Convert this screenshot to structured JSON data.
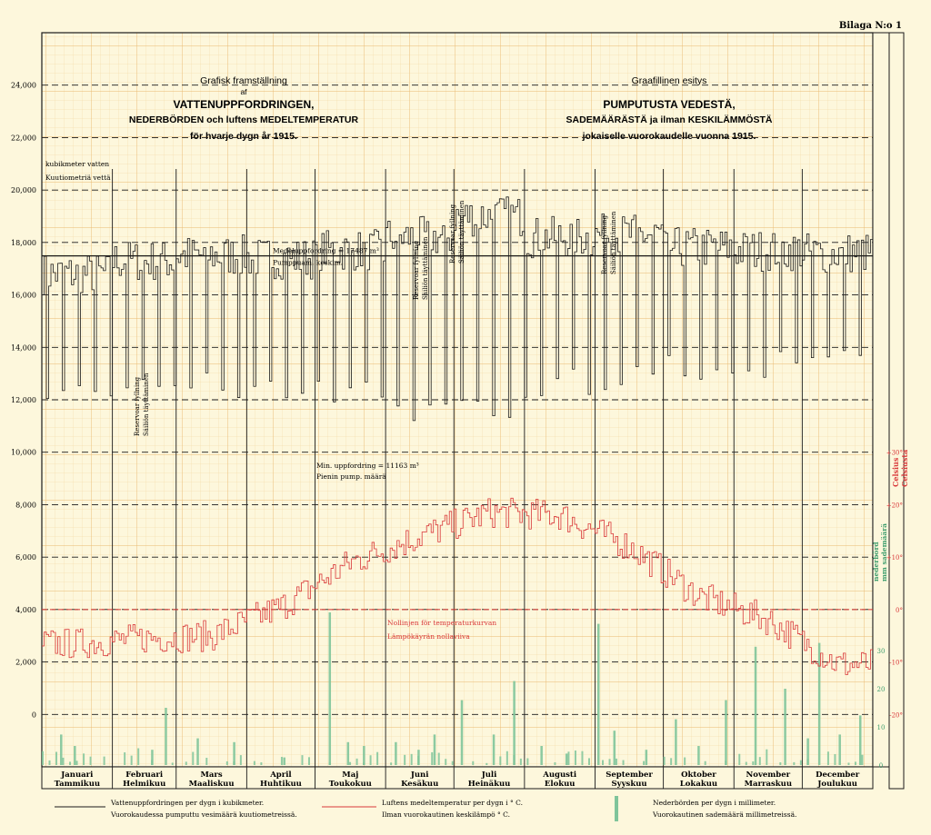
{
  "sheet_label": "Bilaga N:o 1",
  "title_sv": {
    "line1": "Grafisk framställning",
    "line2": "af",
    "line3": "VATTENUPPFORDRINGEN,",
    "line4": "NEDERBÖRDEN och luftens MEDELTEMPERATUR",
    "line5": "för hvarje dygn år 1915."
  },
  "title_fi": {
    "line1": "Graafillinen esitys",
    "line3": "PUMPUTUSTA VEDESTÄ,",
    "line4": "SADEMÄÄRÄSTÄ ja ilman KESKILÄMMÖSTÄ",
    "line5": "jokaiselle vuorokaudelle vuonna 1915."
  },
  "axis": {
    "left_unit_sv": "kubikmeter vatten",
    "left_unit_fi": "Kuutiometriä vettä",
    "temp_unit_sv": "Celsius",
    "temp_unit_fi": "Celsiusta",
    "precip_unit_sv": "nederbörd",
    "precip_unit_fi": "mm sademäärä"
  },
  "annotations": {
    "mean_sv": "Medeluppfordring = 17487 m³",
    "mean_fi": "Pumppuam. keskim.",
    "min_sv": "Min. uppfordring = 11163 m³",
    "min_fi": "Pienin pump. määrä",
    "zero_sv": "Nollinjen för temperaturkurvan",
    "zero_fi": "Lämpökäyrän nollaviiva",
    "reservoir_sv": "Reservoar fyllning",
    "reservoir_fi": "Säiliön täyttäminen"
  },
  "legend": {
    "water_sv": "Vattenuppfordringen per dygn i kubikmeter.",
    "water_fi": "Vuorokaudessa pumputtu vesimäärä kuutiometreissä.",
    "temp_sv": "Luftens medeltemperatur per dygn i ° C.",
    "temp_fi": "Ilman vuorokautinen keskilämpö ° C.",
    "precip_sv": "Nederbörden per dygn i millimeter.",
    "precip_fi": "Vuorokautinen sademäärä millimetreissä."
  },
  "colors": {
    "paper": "#fdf7dc",
    "grid_fine": "#f2d59a",
    "grid_major": "#e9b870",
    "ink": "#1a1a1a",
    "temperature": "#d9383a",
    "precipitation": "#7fc49a",
    "precip_label": "#3f9e6e"
  },
  "chart_data": {
    "type": "line",
    "year": "1915",
    "months": [
      {
        "sv": "Januari",
        "fi": "Tammikuu"
      },
      {
        "sv": "Februari",
        "fi": "Helmikuu"
      },
      {
        "sv": "Mars",
        "fi": "Maaliskuu"
      },
      {
        "sv": "April",
        "fi": "Huhtikuu"
      },
      {
        "sv": "Maj",
        "fi": "Toukokuu"
      },
      {
        "sv": "Juni",
        "fi": "Kesäkuu"
      },
      {
        "sv": "Juli",
        "fi": "Heinäkuu"
      },
      {
        "sv": "Augusti",
        "fi": "Elokuu"
      },
      {
        "sv": "September",
        "fi": "Syyskuu"
      },
      {
        "sv": "Oktober",
        "fi": "Lokakuu"
      },
      {
        "sv": "November",
        "fi": "Marraskuu"
      },
      {
        "sv": "December",
        "fi": "Joulukuu"
      }
    ],
    "days_per_month": [
      31,
      28,
      31,
      30,
      31,
      30,
      31,
      31,
      30,
      31,
      30,
      31
    ],
    "water": {
      "unit": "m³",
      "ylim": [
        -2000,
        26000
      ],
      "ticks": [
        {
          "v": 24000,
          "label": "24,000"
        },
        {
          "v": 22000,
          "label": "22,000"
        },
        {
          "v": 20000,
          "label": "20,000"
        },
        {
          "v": 18000,
          "label": "18,000"
        },
        {
          "v": 16000,
          "label": "16,000"
        },
        {
          "v": 14000,
          "label": "14,000"
        },
        {
          "v": 12000,
          "label": "12,000"
        },
        {
          "v": 10000,
          "label": "10,000"
        },
        {
          "v": 8000,
          "label": "8,000"
        },
        {
          "v": 6000,
          "label": "6,000"
        },
        {
          "v": 4000,
          "label": "4,000"
        },
        {
          "v": 2000,
          "label": "2,000"
        },
        {
          "v": 0,
          "label": "0"
        }
      ],
      "mean": 17487,
      "min": 11163,
      "weekday_monthly": [
        16800,
        17300,
        17500,
        17400,
        17700,
        18200,
        19000,
        18200,
        18300,
        17800,
        17700,
        17600
      ],
      "sunday_monthly": [
        12300,
        12700,
        12500,
        12400,
        12200,
        11300,
        11900,
        12600,
        12900,
        13100,
        13300,
        13500
      ]
    },
    "temperature": {
      "unit": "°C",
      "zero_value": 4000,
      "scale_per_degree": 200,
      "ticks": [
        {
          "v": 30,
          "label": "+30°"
        },
        {
          "v": 20,
          "label": "+20°"
        },
        {
          "v": 10,
          "label": "+10°"
        },
        {
          "v": 0,
          "label": "0°"
        },
        {
          "v": -10,
          "label": "-10°"
        },
        {
          "v": -20,
          "label": "-20°"
        }
      ],
      "monthly": [
        -6.5,
        -5.5,
        -5,
        0.5,
        9,
        14,
        18.5,
        18,
        12,
        2.5,
        -2,
        -10.5
      ]
    },
    "precipitation": {
      "unit": "mm",
      "ticks": [
        {
          "v": 30,
          "label": "30"
        },
        {
          "v": 20,
          "label": "20"
        },
        {
          "v": 10,
          "label": "10"
        },
        {
          "v": 0,
          "label": "0"
        }
      ],
      "peaks": [
        {
          "day": 8,
          "mm": 8
        },
        {
          "day": 14,
          "mm": 5
        },
        {
          "day": 48,
          "mm": 4
        },
        {
          "day": 54,
          "mm": 15
        },
        {
          "day": 68,
          "mm": 7
        },
        {
          "day": 84,
          "mm": 6
        },
        {
          "day": 106,
          "mm": 2
        },
        {
          "day": 126,
          "mm": 40
        },
        {
          "day": 134,
          "mm": 6
        },
        {
          "day": 141,
          "mm": 5
        },
        {
          "day": 155,
          "mm": 6
        },
        {
          "day": 165,
          "mm": 4
        },
        {
          "day": 172,
          "mm": 8
        },
        {
          "day": 184,
          "mm": 17
        },
        {
          "day": 198,
          "mm": 8
        },
        {
          "day": 207,
          "mm": 22
        },
        {
          "day": 219,
          "mm": 5
        },
        {
          "day": 230,
          "mm": 3
        },
        {
          "day": 244,
          "mm": 37
        },
        {
          "day": 251,
          "mm": 9
        },
        {
          "day": 265,
          "mm": 4
        },
        {
          "day": 278,
          "mm": 12
        },
        {
          "day": 288,
          "mm": 5
        },
        {
          "day": 300,
          "mm": 17
        },
        {
          "day": 313,
          "mm": 31
        },
        {
          "day": 326,
          "mm": 20
        },
        {
          "day": 336,
          "mm": 7
        },
        {
          "day": 341,
          "mm": 32
        },
        {
          "day": 350,
          "mm": 8
        },
        {
          "day": 359,
          "mm": 13
        }
      ]
    }
  }
}
